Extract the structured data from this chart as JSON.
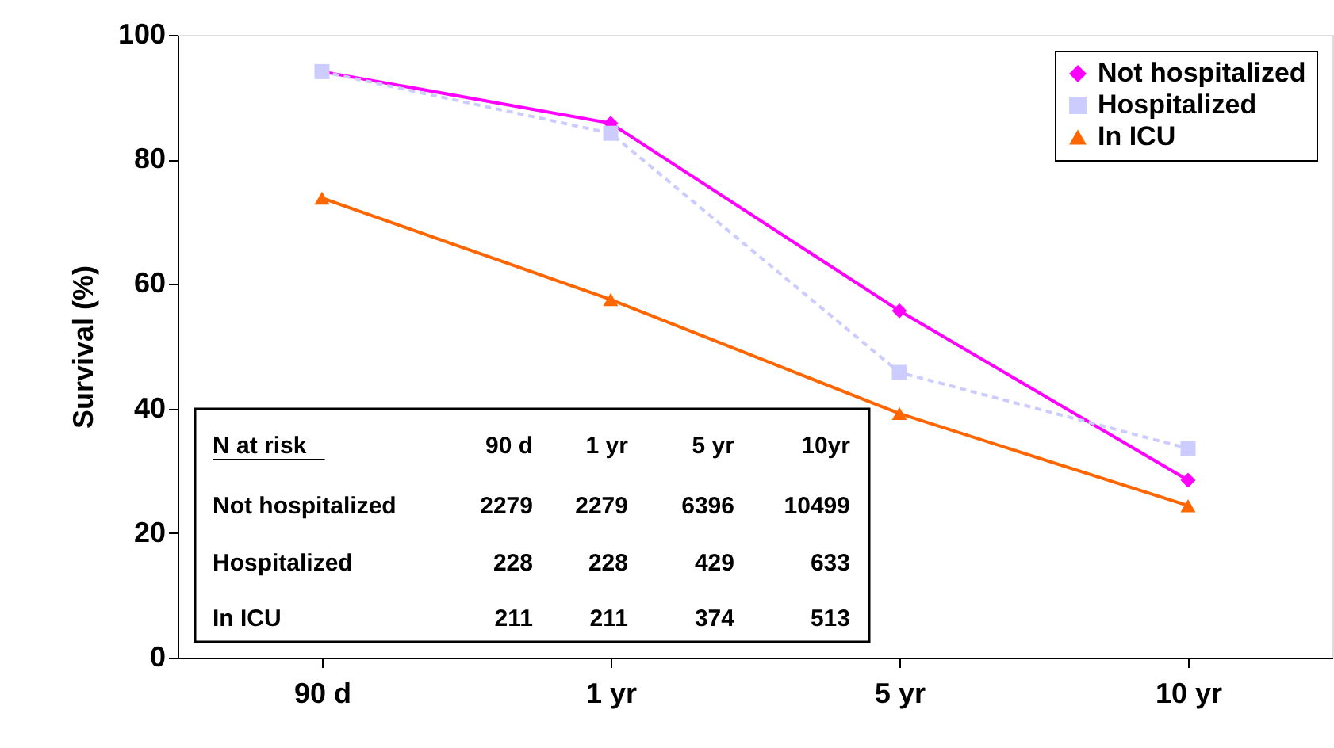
{
  "chart_data": {
    "type": "line",
    "ylabel": "Survival (%)",
    "categories": [
      "90 d",
      "1 yr",
      "5 yr",
      "10 yr"
    ],
    "ylim": [
      0,
      100
    ],
    "yticks": [
      0,
      20,
      40,
      60,
      80,
      100
    ],
    "grid": false,
    "legend": "top right",
    "series": [
      {
        "name": "Not hospitalized",
        "color": "#ff00ff",
        "marker": "diamond",
        "line_style": "solid",
        "values": [
          94.1,
          85.8,
          55.7,
          28.5
        ]
      },
      {
        "name": "Hospitalized",
        "color": "#ccccff",
        "marker": "square",
        "line_style": "dashed",
        "values": [
          94.1,
          84.2,
          45.8,
          33.6
        ]
      },
      {
        "name": "In ICU",
        "color": "#ff6600",
        "marker": "triangle",
        "line_style": "solid",
        "values": [
          73.8,
          57.5,
          39.2,
          24.4
        ]
      }
    ],
    "annotations": [
      "N at risk",
      "90 d",
      "1 yr",
      "5 yr",
      "10yr",
      "Not hospitalized",
      "2279",
      "2279",
      "6396",
      "10499",
      "Hospitalized",
      "228",
      "228",
      "429",
      "633",
      "In ICU",
      "211",
      "211",
      "374",
      "513"
    ]
  }
}
